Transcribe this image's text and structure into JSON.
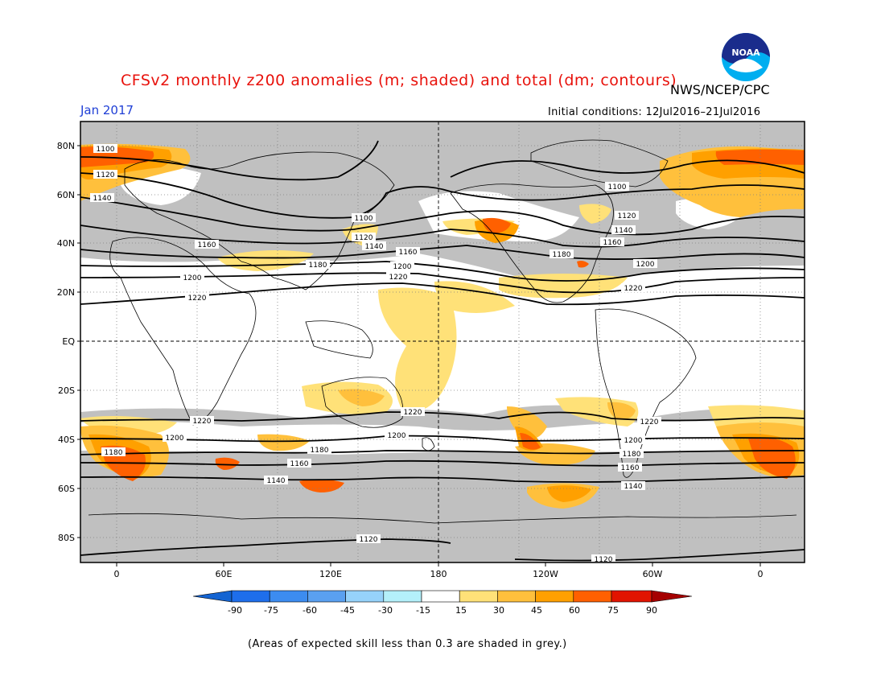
{
  "title": "CFSv2 monthly z200 anomalies (m; shaded) and total (dm; contours)",
  "agency": "NWS/NCEP/CPC",
  "logo_text": "NOAA",
  "date_label": "Jan 2017",
  "initial_conditions": "Initial conditions: 12Jul2016–21Jul2016",
  "footnote": "(Areas of expected skill less than 0.3 are shaded in grey.)",
  "colors": {
    "skill_grey": "#c0c0c0",
    "neg90": "#1464d2",
    "neg75": "#1e6eeb",
    "neg60": "#3c8cf0",
    "neg45": "#5aa0f0",
    "neg30": "#96d2fa",
    "neg15": "#b4f0fa",
    "neutral": "#ffffff",
    "pos15": "#ffe178",
    "pos30": "#ffc03c",
    "pos45": "#ffa000",
    "pos60": "#ff6000",
    "pos75": "#e11400",
    "pos90": "#a50000"
  },
  "map": {
    "lat_labels": [
      "80N",
      "60N",
      "40N",
      "20N",
      "EQ",
      "20S",
      "40S",
      "60S",
      "80S"
    ],
    "lon_labels": [
      "0",
      "60E",
      "120E",
      "180",
      "120W",
      "60W",
      "0"
    ],
    "contour_labels": [
      "1100",
      "1120",
      "1140",
      "1160",
      "1180",
      "1200",
      "1220"
    ]
  },
  "colorbar": {
    "ticks": [
      "-90",
      "-75",
      "-60",
      "-45",
      "-30",
      "-15",
      "15",
      "30",
      "45",
      "60",
      "75",
      "90"
    ]
  }
}
